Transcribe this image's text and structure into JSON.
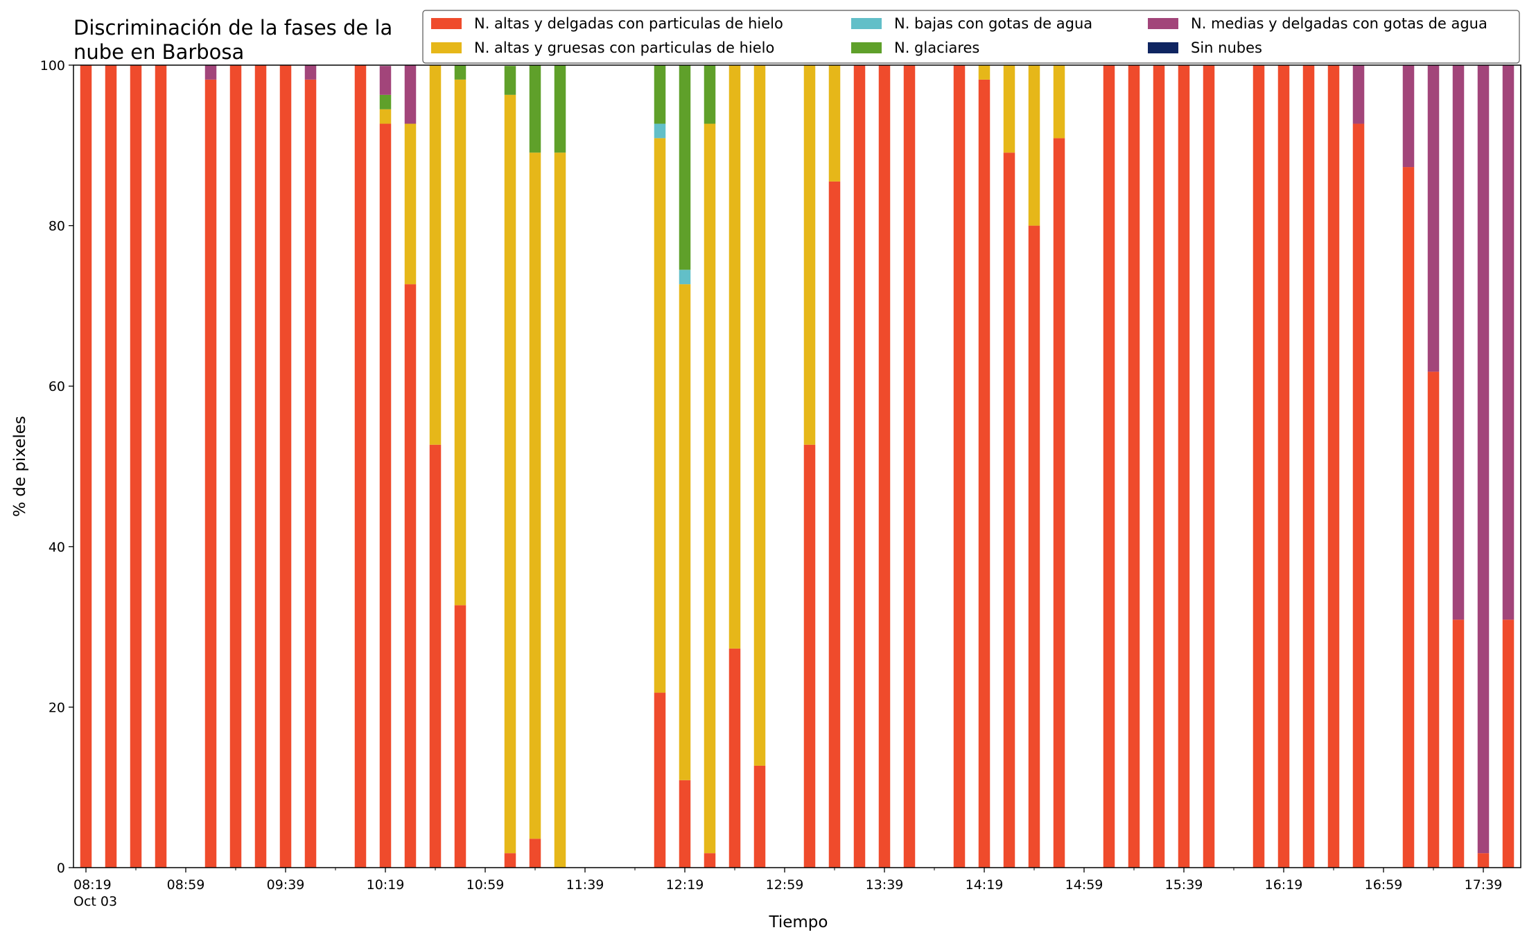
{
  "chart_data": {
    "type": "bar",
    "stacked": true,
    "title": "Discriminación de la fases de la\nnube en Barbosa",
    "xlabel": "Tiempo",
    "ylabel": "% de pixeles",
    "ylim": [
      0,
      100
    ],
    "yticks": [
      0,
      20,
      40,
      60,
      80,
      100
    ],
    "xlim": [
      "08:14",
      "17:54"
    ],
    "grid": false,
    "legend_position": "top-right",
    "x_tick_labels": [
      {
        "time": "08:19",
        "label": "08:19",
        "sublabel": "Oct 03"
      },
      {
        "time": "08:59",
        "label": "08:59"
      },
      {
        "time": "09:39",
        "label": "09:39"
      },
      {
        "time": "10:19",
        "label": "10:19"
      },
      {
        "time": "10:59",
        "label": "10:59"
      },
      {
        "time": "11:39",
        "label": "11:39"
      },
      {
        "time": "12:19",
        "label": "12:19"
      },
      {
        "time": "12:59",
        "label": "12:59"
      },
      {
        "time": "13:39",
        "label": "13:39"
      },
      {
        "time": "14:19",
        "label": "14:19"
      },
      {
        "time": "14:59",
        "label": "14:59"
      },
      {
        "time": "15:39",
        "label": "15:39"
      },
      {
        "time": "16:19",
        "label": "16:19"
      },
      {
        "time": "16:59",
        "label": "16:59"
      },
      {
        "time": "17:39",
        "label": "17:39"
      }
    ],
    "x": [
      "08:19",
      "08:29",
      "08:39",
      "08:49",
      "08:59",
      "09:09",
      "09:19",
      "09:29",
      "09:39",
      "09:49",
      "09:59",
      "10:09",
      "10:19",
      "10:29",
      "10:39",
      "10:49",
      "10:59",
      "11:09",
      "11:19",
      "11:29",
      "11:39",
      "11:49",
      "11:59",
      "12:09",
      "12:19",
      "12:29",
      "12:39",
      "12:49",
      "12:59",
      "13:09",
      "13:19",
      "13:29",
      "13:39",
      "13:49",
      "13:59",
      "14:09",
      "14:19",
      "14:29",
      "14:39",
      "14:49",
      "14:59",
      "15:09",
      "15:19",
      "15:29",
      "15:39",
      "15:49",
      "15:59",
      "16:09",
      "16:19",
      "16:29",
      "16:39",
      "16:49",
      "16:59",
      "17:09",
      "17:19",
      "17:29",
      "17:39",
      "17:49"
    ],
    "series": [
      {
        "name": "N. altas y delgadas con particulas de hielo",
        "color": "#ef4b2c",
        "values": [
          100,
          100,
          100,
          100,
          0,
          98.2,
          100,
          100,
          100,
          98.2,
          0,
          100,
          92.7,
          72.7,
          52.7,
          32.7,
          0,
          1.8,
          3.6,
          0,
          0,
          0,
          0,
          21.8,
          10.9,
          1.8,
          27.3,
          12.7,
          0,
          52.7,
          85.5,
          100,
          100,
          100,
          0,
          100,
          98.2,
          89.1,
          80.0,
          90.9,
          0,
          100,
          100,
          100,
          100,
          100,
          0,
          100,
          100,
          100,
          100,
          92.7,
          0,
          87.3,
          61.8,
          30.9,
          1.8,
          30.9
        ]
      },
      {
        "name": "N. altas y gruesas con particulas de hielo",
        "color": "#e6b719",
        "values": [
          0,
          0,
          0,
          0,
          0,
          0,
          0,
          0,
          0,
          0,
          0,
          0,
          1.8,
          20.0,
          47.3,
          65.5,
          0,
          94.5,
          85.5,
          89.1,
          0,
          0,
          0,
          69.1,
          61.8,
          90.9,
          72.7,
          87.3,
          0,
          47.3,
          14.5,
          0,
          0,
          0,
          0,
          0,
          1.8,
          10.9,
          20.0,
          9.1,
          0,
          0,
          0,
          0,
          0,
          0,
          0,
          0,
          0,
          0,
          0,
          0,
          0,
          0,
          0,
          0,
          0,
          0
        ]
      },
      {
        "name": "N. bajas con gotas de agua",
        "color": "#62bfc8",
        "values": [
          0,
          0,
          0,
          0,
          0,
          0,
          0,
          0,
          0,
          0,
          0,
          0,
          0,
          0,
          0,
          0,
          0,
          0,
          0,
          0,
          0,
          0,
          0,
          1.8,
          1.8,
          0,
          0,
          0,
          0,
          0,
          0,
          0,
          0,
          0,
          0,
          0,
          0,
          0,
          0,
          0,
          0,
          0,
          0,
          0,
          0,
          0,
          0,
          0,
          0,
          0,
          0,
          0,
          0,
          0,
          0,
          0,
          0,
          0
        ]
      },
      {
        "name": "N. glaciares",
        "color": "#5fa02a",
        "values": [
          0,
          0,
          0,
          0,
          0,
          0,
          0,
          0,
          0,
          0,
          0,
          0,
          1.8,
          0,
          0,
          1.8,
          0,
          3.6,
          10.9,
          10.9,
          0,
          0,
          0,
          7.3,
          25.5,
          7.3,
          0,
          0,
          0,
          0,
          0,
          0,
          0,
          0,
          0,
          0,
          0,
          0,
          0,
          0,
          0,
          0,
          0,
          0,
          0,
          0,
          0,
          0,
          0,
          0,
          0,
          0,
          0,
          0,
          0,
          0,
          0,
          0
        ]
      },
      {
        "name": "N. medias y delgadas con gotas de agua",
        "color": "#a2457a",
        "values": [
          0,
          0,
          0,
          0,
          0,
          1.8,
          0,
          0,
          0,
          1.8,
          0,
          0,
          3.6,
          7.3,
          0,
          0,
          0,
          0,
          0,
          0,
          0,
          0,
          0,
          0,
          0,
          0,
          0,
          0,
          0,
          0,
          0,
          0,
          0,
          0,
          0,
          0,
          0,
          0,
          0,
          0,
          0,
          0,
          0,
          0,
          0,
          0,
          0,
          0,
          0,
          0,
          0,
          7.3,
          0,
          12.7,
          38.2,
          69.1,
          98.2,
          69.1
        ]
      },
      {
        "name": "Sin nubes",
        "color": "#0f2561",
        "values": [
          0,
          0,
          0,
          0,
          0,
          0,
          0,
          0,
          0,
          0,
          0,
          0,
          0,
          0,
          0,
          0,
          0,
          0,
          0,
          0,
          0,
          0,
          0,
          0,
          0,
          0,
          0,
          0,
          0,
          0,
          0,
          0,
          0,
          0,
          0,
          0,
          0,
          0,
          0,
          0,
          0,
          0,
          0,
          0,
          0,
          0,
          0,
          0,
          0,
          0,
          0,
          0,
          0,
          0,
          0,
          0,
          0,
          0
        ]
      }
    ]
  }
}
